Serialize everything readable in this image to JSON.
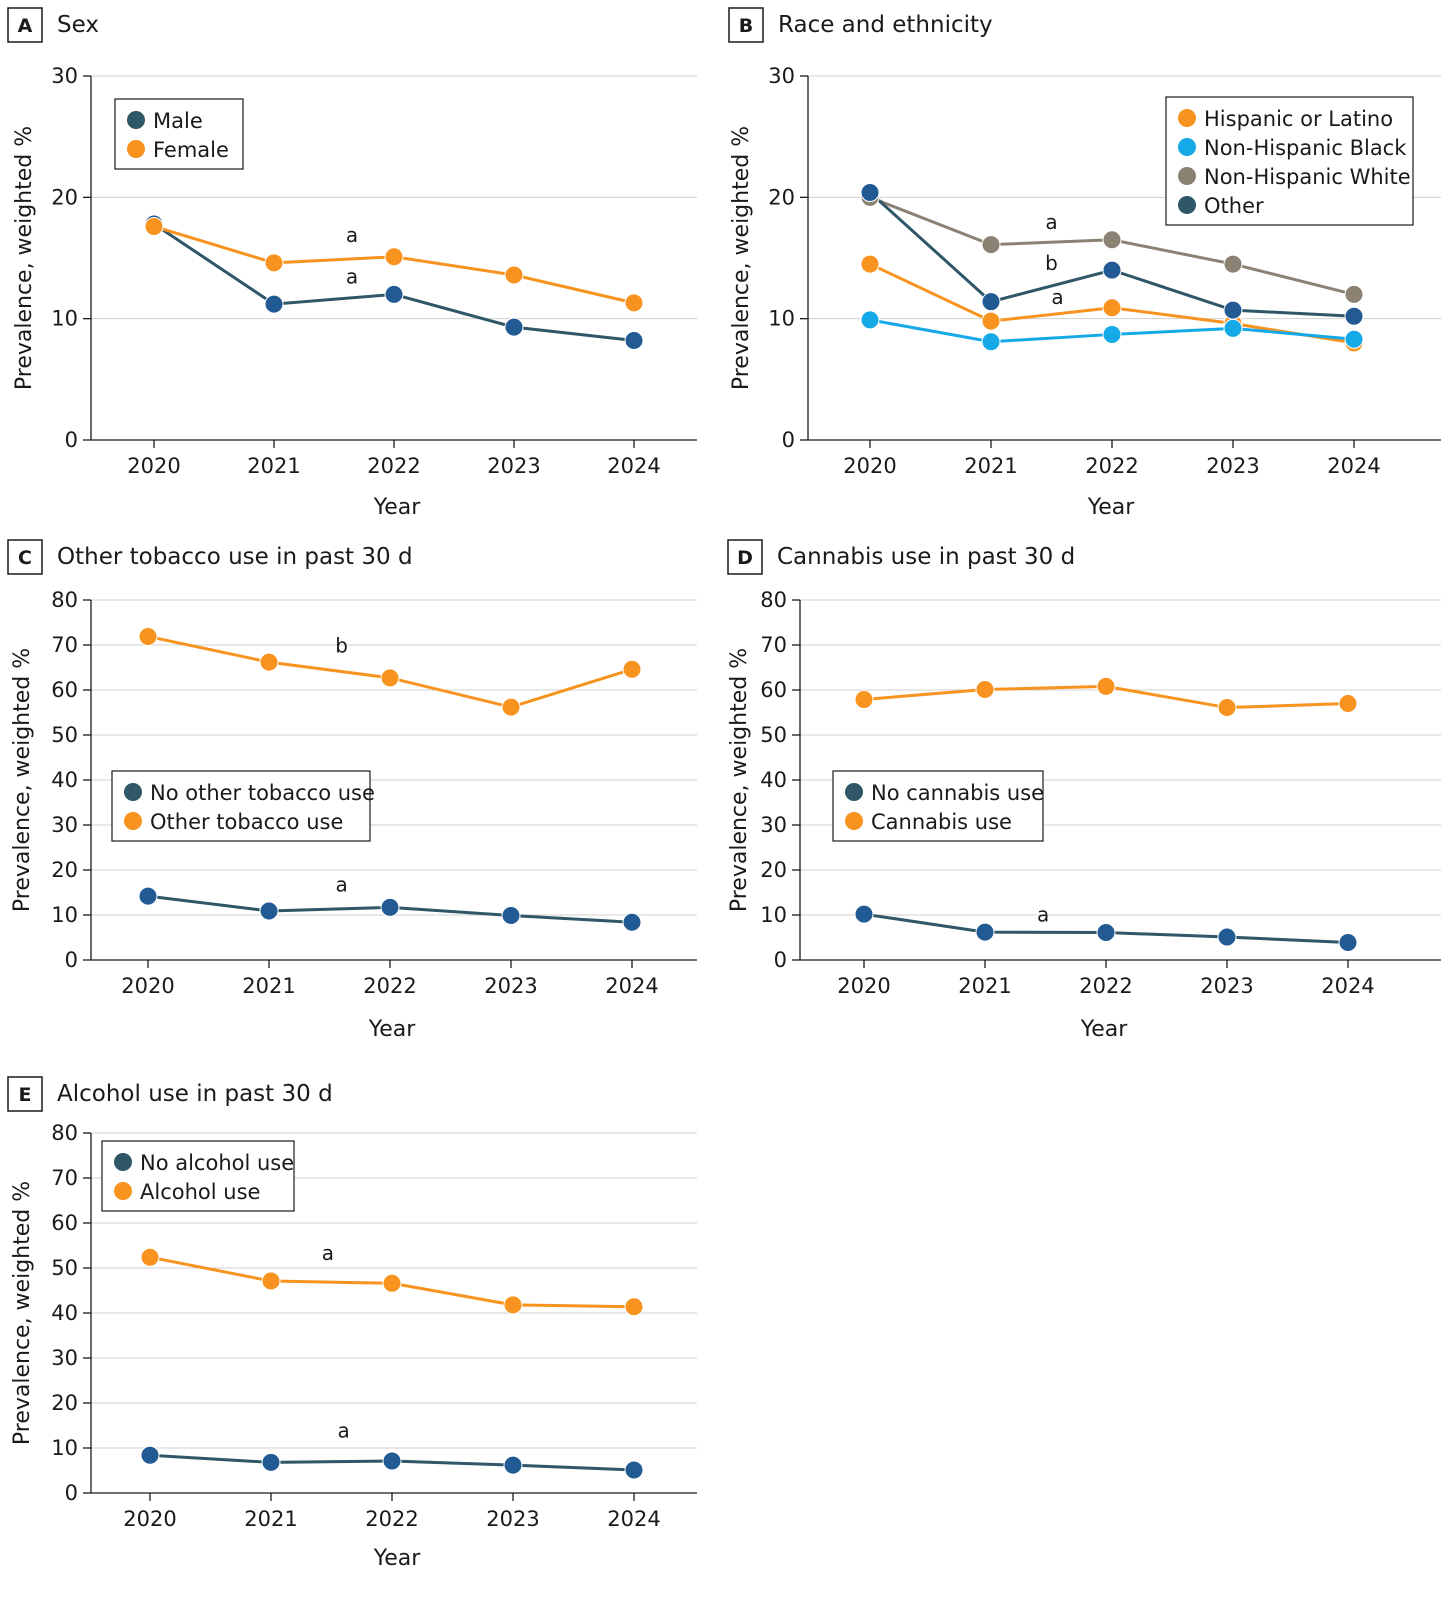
{
  "colors": {
    "dark": "#2f5768",
    "dark_marker": "#225a93",
    "orange": "#f7931e",
    "cyan": "#15a9e8",
    "gray": "#8c8273",
    "grid": "#d0d0d0"
  },
  "chart_data": [
    {
      "id": "A",
      "letter": "A",
      "title": "Sex",
      "type": "line",
      "xlabel": "Year",
      "ylabel": "Prevalence, weighted %",
      "x": [
        "2020",
        "2021",
        "2022",
        "2023",
        "2024"
      ],
      "ylim": [
        0,
        30
      ],
      "yticks": [
        0,
        10,
        20,
        30
      ],
      "grid": true,
      "legend_position": "top-left",
      "series": [
        {
          "name": "Male",
          "color": "dark",
          "values": [
            17.8,
            11.2,
            12.0,
            9.3,
            8.2
          ]
        },
        {
          "name": "Female",
          "color": "orange",
          "values": [
            17.6,
            14.6,
            15.1,
            13.6,
            11.3
          ]
        }
      ],
      "annotations": [
        {
          "text": "a",
          "x": 1.65,
          "y": 16.3
        },
        {
          "text": "a",
          "x": 1.65,
          "y": 12.9
        }
      ]
    },
    {
      "id": "B",
      "letter": "B",
      "title": "Race and ethnicity",
      "type": "line",
      "xlabel": "Year",
      "ylabel": "Prevalence, weighted %",
      "x": [
        "2020",
        "2021",
        "2022",
        "2023",
        "2024"
      ],
      "ylim": [
        0,
        30
      ],
      "yticks": [
        0,
        10,
        20,
        30
      ],
      "grid": true,
      "legend_position": "top-right",
      "series": [
        {
          "name": "Hispanic or Latino",
          "color": "orange",
          "values": [
            14.5,
            9.8,
            10.9,
            9.6,
            8.0
          ]
        },
        {
          "name": "Non-Hispanic Black",
          "color": "cyan",
          "values": [
            9.9,
            8.1,
            8.7,
            9.2,
            8.3
          ]
        },
        {
          "name": "Non-Hispanic White",
          "color": "gray",
          "values": [
            20.0,
            16.1,
            16.5,
            14.5,
            12.0
          ]
        },
        {
          "name": "Other",
          "color": "dark",
          "values": [
            20.4,
            11.4,
            14.0,
            10.7,
            10.2
          ]
        }
      ],
      "annotations": [
        {
          "text": "a",
          "x": 1.5,
          "y": 17.4
        },
        {
          "text": "b",
          "x": 1.5,
          "y": 14.0
        },
        {
          "text": "a",
          "x": 1.55,
          "y": 11.2
        }
      ]
    },
    {
      "id": "C",
      "letter": "C",
      "title": "Other tobacco use in past 30 d",
      "type": "line",
      "xlabel": "Year",
      "ylabel": "Prevalence, weighted %",
      "x": [
        "2020",
        "2021",
        "2022",
        "2023",
        "2024"
      ],
      "ylim": [
        0,
        80
      ],
      "yticks": [
        0,
        10,
        20,
        30,
        40,
        50,
        60,
        70,
        80
      ],
      "grid": true,
      "legend_position": "middle-left",
      "series": [
        {
          "name": "No other tobacco use",
          "color": "dark",
          "values": [
            14.2,
            10.9,
            11.7,
            9.9,
            8.4
          ]
        },
        {
          "name": "Other tobacco use",
          "color": "orange",
          "values": [
            71.9,
            66.2,
            62.7,
            56.2,
            64.6
          ]
        }
      ],
      "annotations": [
        {
          "text": "b",
          "x": 1.6,
          "y": 68.3
        },
        {
          "text": "a",
          "x": 1.6,
          "y": 15.2
        }
      ]
    },
    {
      "id": "D",
      "letter": "D",
      "title": "Cannabis use in past 30 d",
      "type": "line",
      "xlabel": "Year",
      "ylabel": "Prevalence, weighted %",
      "x": [
        "2020",
        "2021",
        "2022",
        "2023",
        "2024"
      ],
      "ylim": [
        0,
        80
      ],
      "yticks": [
        0,
        10,
        20,
        30,
        40,
        50,
        60,
        70,
        80
      ],
      "grid": true,
      "legend_position": "middle-left",
      "series": [
        {
          "name": "No cannabis use",
          "color": "dark",
          "values": [
            10.2,
            6.2,
            6.1,
            5.1,
            3.9
          ]
        },
        {
          "name": "Cannabis use",
          "color": "orange",
          "values": [
            57.9,
            60.1,
            60.8,
            56.1,
            57.0
          ]
        }
      ],
      "annotations": [
        {
          "text": "a",
          "x": 1.48,
          "y": 8.6
        }
      ]
    },
    {
      "id": "E",
      "letter": "E",
      "title": "Alcohol use in past 30 d",
      "type": "line",
      "xlabel": "Year",
      "ylabel": "Prevalence, weighted %",
      "x": [
        "2020",
        "2021",
        "2022",
        "2023",
        "2024"
      ],
      "ylim": [
        0,
        80
      ],
      "yticks": [
        0,
        10,
        20,
        30,
        40,
        50,
        60,
        70,
        80
      ],
      "grid": true,
      "legend_position": "top-left",
      "series": [
        {
          "name": "No alcohol use",
          "color": "dark",
          "values": [
            8.4,
            6.8,
            7.1,
            6.2,
            5.1
          ]
        },
        {
          "name": "Alcohol use",
          "color": "orange",
          "values": [
            52.4,
            47.1,
            46.6,
            41.8,
            41.4
          ]
        }
      ],
      "annotations": [
        {
          "text": "a",
          "x": 1.47,
          "y": 51.8
        },
        {
          "text": "a",
          "x": 1.6,
          "y": 12.3
        }
      ]
    }
  ]
}
